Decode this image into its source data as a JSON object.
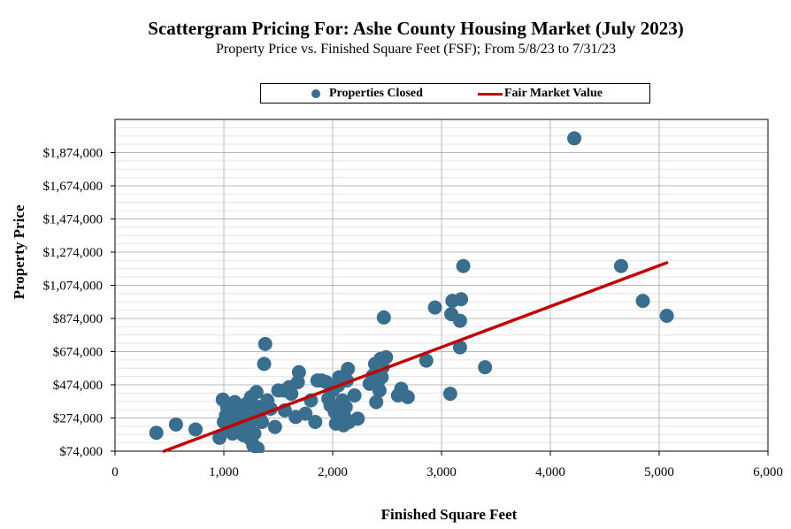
{
  "chart_data": {
    "type": "scatter",
    "title": "Scattergram Pricing For: Ashe County Housing Market (July 2023)",
    "subtitle": "Property Price vs. Finished Square Feet (FSF); From 5/8/23 to 7/31/23",
    "xlabel": "Finished Square Feet",
    "ylabel": "Property Price",
    "xlim": [
      0,
      6000
    ],
    "ylim": [
      74000,
      2074000
    ],
    "x_ticks": [
      0,
      1000,
      2000,
      3000,
      4000,
      5000,
      6000
    ],
    "x_tick_labels": [
      "0",
      "1,000",
      "2,000",
      "3,000",
      "4,000",
      "5,000",
      "6,000"
    ],
    "y_ticks": [
      74000,
      274000,
      474000,
      674000,
      874000,
      1074000,
      1274000,
      1474000,
      1674000,
      1874000
    ],
    "y_tick_labels": [
      "$74,000",
      "$274,000",
      "$474,000",
      "$674,000",
      "$874,000",
      "$1,074,000",
      "$1,274,000",
      "$1,474,000",
      "$1,674,000",
      "$1,874,000"
    ],
    "grid": true,
    "legend_position": "top",
    "colors": {
      "points": "#3a6e8f",
      "line": "#c00000",
      "grid_major": "#b8b8b8",
      "grid_minor": "#e4e4e4"
    },
    "series": [
      {
        "name": "Properties Closed",
        "kind": "scatter",
        "points": [
          [
            380,
            185000
          ],
          [
            560,
            235000
          ],
          [
            740,
            205000
          ],
          [
            960,
            155000
          ],
          [
            990,
            385000
          ],
          [
            1000,
            250000
          ],
          [
            1020,
            290000
          ],
          [
            1030,
            340000
          ],
          [
            1040,
            210000
          ],
          [
            1060,
            230000
          ],
          [
            1070,
            330000
          ],
          [
            1080,
            180000
          ],
          [
            1090,
            260000
          ],
          [
            1100,
            370000
          ],
          [
            1110,
            310000
          ],
          [
            1130,
            280000
          ],
          [
            1150,
            195000
          ],
          [
            1160,
            225000
          ],
          [
            1170,
            300000
          ],
          [
            1180,
            170000
          ],
          [
            1200,
            240000
          ],
          [
            1210,
            360000
          ],
          [
            1220,
            200000
          ],
          [
            1240,
            150000
          ],
          [
            1250,
            400000
          ],
          [
            1260,
            260000
          ],
          [
            1270,
            110000
          ],
          [
            1280,
            180000
          ],
          [
            1290,
            310000
          ],
          [
            1300,
            430000
          ],
          [
            1310,
            90000
          ],
          [
            1320,
            340000
          ],
          [
            1330,
            280000
          ],
          [
            1350,
            250000
          ],
          [
            1370,
            600000
          ],
          [
            1380,
            720000
          ],
          [
            1400,
            380000
          ],
          [
            1430,
            330000
          ],
          [
            1470,
            220000
          ],
          [
            1500,
            440000
          ],
          [
            1550,
            440000
          ],
          [
            1560,
            320000
          ],
          [
            1600,
            460000
          ],
          [
            1620,
            420000
          ],
          [
            1660,
            280000
          ],
          [
            1680,
            490000
          ],
          [
            1690,
            550000
          ],
          [
            1750,
            300000
          ],
          [
            1800,
            380000
          ],
          [
            1840,
            250000
          ],
          [
            1860,
            500000
          ],
          [
            1900,
            500000
          ],
          [
            1940,
            490000
          ],
          [
            1960,
            390000
          ],
          [
            1980,
            350000
          ],
          [
            2000,
            440000
          ],
          [
            2020,
            310000
          ],
          [
            2030,
            240000
          ],
          [
            2050,
            470000
          ],
          [
            2060,
            520000
          ],
          [
            2080,
            300000
          ],
          [
            2090,
            380000
          ],
          [
            2100,
            230000
          ],
          [
            2110,
            280000
          ],
          [
            2120,
            340000
          ],
          [
            2130,
            500000
          ],
          [
            2140,
            570000
          ],
          [
            2150,
            250000
          ],
          [
            2200,
            410000
          ],
          [
            2230,
            270000
          ],
          [
            2340,
            480000
          ],
          [
            2370,
            530000
          ],
          [
            2390,
            600000
          ],
          [
            2400,
            370000
          ],
          [
            2420,
            500000
          ],
          [
            2430,
            440000
          ],
          [
            2440,
            630000
          ],
          [
            2450,
            520000
          ],
          [
            2460,
            580000
          ],
          [
            2470,
            880000
          ],
          [
            2490,
            640000
          ],
          [
            2600,
            410000
          ],
          [
            2630,
            450000
          ],
          [
            2690,
            400000
          ],
          [
            2860,
            620000
          ],
          [
            2940,
            940000
          ],
          [
            3080,
            420000
          ],
          [
            3100,
            980000
          ],
          [
            3090,
            900000
          ],
          [
            3170,
            700000
          ],
          [
            3170,
            860000
          ],
          [
            3180,
            990000
          ],
          [
            3200,
            1190000
          ],
          [
            3400,
            580000
          ],
          [
            4220,
            1960000
          ],
          [
            4650,
            1190000
          ],
          [
            4850,
            980000
          ],
          [
            5070,
            890000
          ]
        ]
      },
      {
        "name": "Fair Market Value",
        "kind": "line",
        "points": [
          [
            450,
            74000
          ],
          [
            5070,
            1210000
          ]
        ]
      }
    ]
  }
}
